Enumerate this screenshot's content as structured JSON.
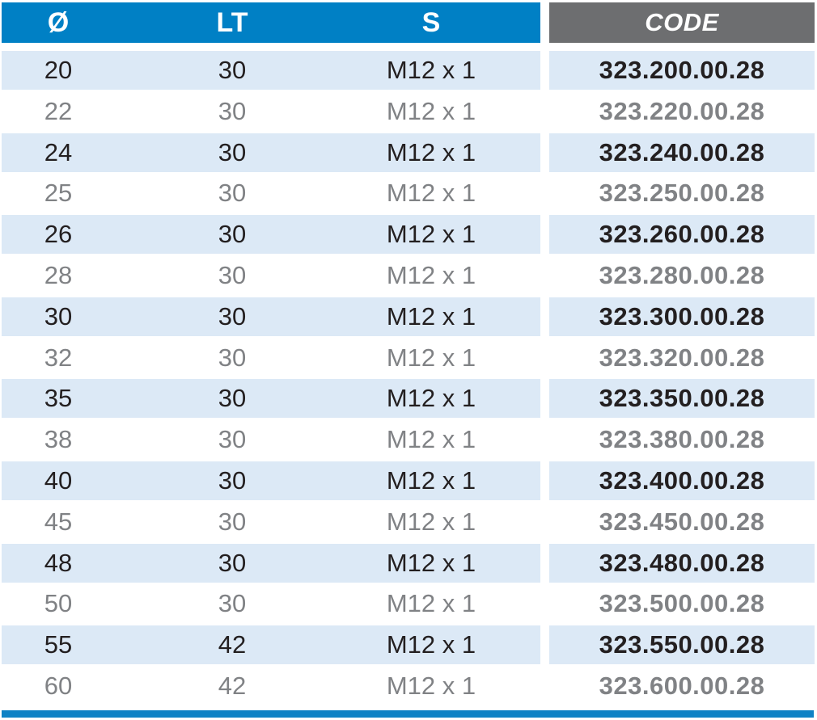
{
  "table": {
    "columns": [
      {
        "key": "diameter",
        "label": "Ø"
      },
      {
        "key": "lt",
        "label": "LT"
      },
      {
        "key": "s",
        "label": "S"
      },
      {
        "key": "code",
        "label": "CODE"
      }
    ],
    "rows": [
      {
        "diameter": "20",
        "lt": "30",
        "s": "M12 x 1",
        "code": "323.200.00.28"
      },
      {
        "diameter": "22",
        "lt": "30",
        "s": "M12 x 1",
        "code": "323.220.00.28"
      },
      {
        "diameter": "24",
        "lt": "30",
        "s": "M12 x 1",
        "code": "323.240.00.28"
      },
      {
        "diameter": "25",
        "lt": "30",
        "s": "M12 x 1",
        "code": "323.250.00.28"
      },
      {
        "diameter": "26",
        "lt": "30",
        "s": "M12 x 1",
        "code": "323.260.00.28"
      },
      {
        "diameter": "28",
        "lt": "30",
        "s": "M12 x 1",
        "code": "323.280.00.28"
      },
      {
        "diameter": "30",
        "lt": "30",
        "s": "M12 x 1",
        "code": "323.300.00.28"
      },
      {
        "diameter": "32",
        "lt": "30",
        "s": "M12 x 1",
        "code": "323.320.00.28"
      },
      {
        "diameter": "35",
        "lt": "30",
        "s": "M12 x 1",
        "code": "323.350.00.28"
      },
      {
        "diameter": "38",
        "lt": "30",
        "s": "M12 x 1",
        "code": "323.380.00.28"
      },
      {
        "diameter": "40",
        "lt": "30",
        "s": "M12 x 1",
        "code": "323.400.00.28"
      },
      {
        "diameter": "45",
        "lt": "30",
        "s": "M12 x 1",
        "code": "323.450.00.28"
      },
      {
        "diameter": "48",
        "lt": "30",
        "s": "M12 x 1",
        "code": "323.480.00.28"
      },
      {
        "diameter": "50",
        "lt": "30",
        "s": "M12 x 1",
        "code": "323.500.00.28"
      },
      {
        "diameter": "55",
        "lt": "42",
        "s": "M12 x 1",
        "code": "323.550.00.28"
      },
      {
        "diameter": "60",
        "lt": "42",
        "s": "M12 x 1",
        "code": "323.600.00.28"
      }
    ]
  },
  "colors": {
    "header_blue": "#0080c5",
    "header_gray": "#6d6e70",
    "row_highlight_blue": "#dce9f6",
    "dark_text": "#231f20",
    "gray_text": "#808285",
    "bottom_bar_blue": "#0f82c5"
  }
}
